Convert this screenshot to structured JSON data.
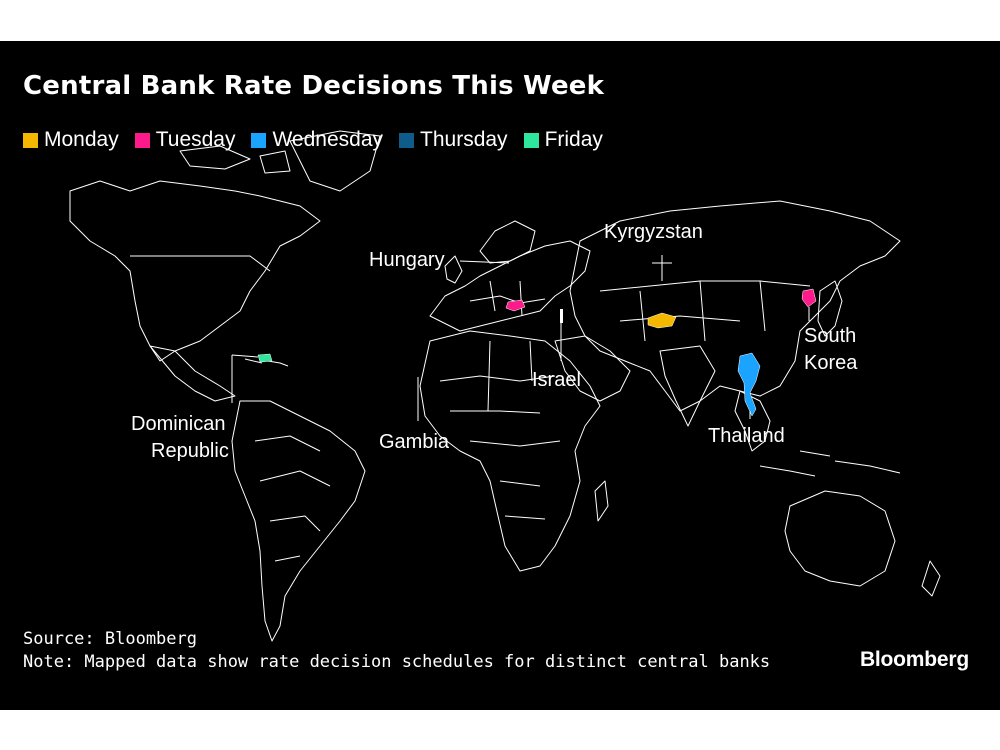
{
  "title": "Central Bank Rate Decisions This Week",
  "legend": [
    {
      "label": "Monday",
      "color": "#f5b800"
    },
    {
      "label": "Tuesday",
      "color": "#ff1a8c"
    },
    {
      "label": "Wednesday",
      "color": "#1aa3ff"
    },
    {
      "label": "Thursday",
      "color": "#0d5c8a"
    },
    {
      "label": "Friday",
      "color": "#2ee69c"
    }
  ],
  "countries": [
    {
      "name": "Hungary",
      "day": "Tuesday"
    },
    {
      "name": "Kyrgyzstan",
      "day": "Monday"
    },
    {
      "name": "South Korea",
      "line1": "South",
      "line2": "Korea",
      "day": "Tuesday"
    },
    {
      "name": "Israel",
      "day": "Unknown"
    },
    {
      "name": "Thailand",
      "day": "Wednesday"
    },
    {
      "name": "Gambia",
      "day": "Unknown"
    },
    {
      "name": "Dominican Republic",
      "line1": "Dominican",
      "line2": "Republic",
      "day": "Friday"
    }
  ],
  "footer": {
    "source": "Source: Bloomberg",
    "note": "Note: Mapped data show rate decision schedules for distinct central banks"
  },
  "brand": "Bloomberg"
}
